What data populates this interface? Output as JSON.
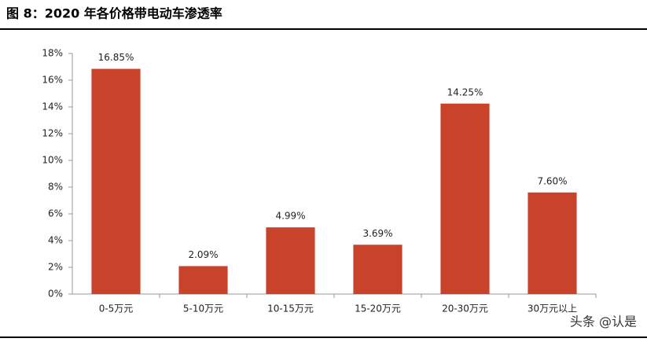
{
  "chart_data": {
    "type": "bar",
    "title": "图 8：2020 年各价格带电动车渗透率",
    "categories": [
      "0-5万元",
      "5-10万元",
      "10-15万元",
      "15-20万元",
      "20-30万元",
      "30万元以上"
    ],
    "values": [
      16.85,
      2.09,
      4.99,
      3.69,
      14.25,
      7.6
    ],
    "value_labels": [
      "16.85%",
      "2.09%",
      "4.99%",
      "3.69%",
      "14.25%",
      "7.60%"
    ],
    "color": "#c8432a",
    "ylim": [
      0,
      18
    ],
    "yticks": [
      {
        "value": 0,
        "label": "0%"
      },
      {
        "value": 2,
        "label": "2%"
      },
      {
        "value": 4,
        "label": "4%"
      },
      {
        "value": 6,
        "label": "6%"
      },
      {
        "value": 8,
        "label": "8%"
      },
      {
        "value": 10,
        "label": "10%"
      },
      {
        "value": 12,
        "label": "12%"
      },
      {
        "value": 14,
        "label": "14%"
      },
      {
        "value": 16,
        "label": "16%"
      },
      {
        "value": 18,
        "label": "18%"
      }
    ],
    "grid": false,
    "watermark": "头条 @认是"
  }
}
